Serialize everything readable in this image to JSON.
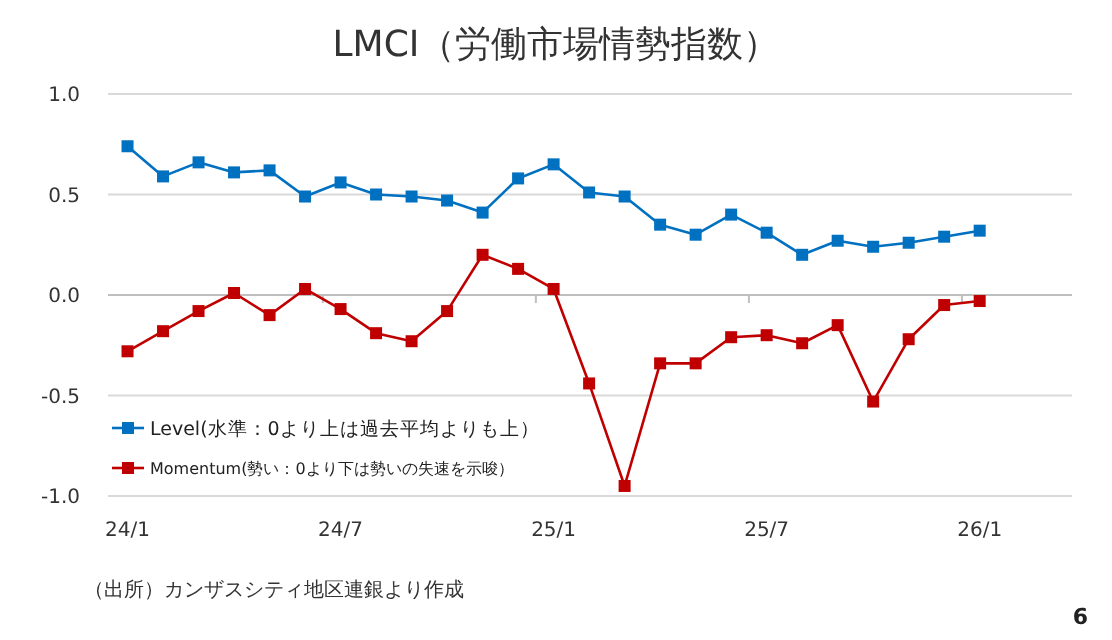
{
  "chart_data": {
    "type": "line",
    "title": "LMCI（労働市場情勢指数）",
    "categories": [
      "24/1",
      null,
      null,
      null,
      null,
      null,
      "24/7",
      null,
      null,
      null,
      null,
      null,
      "25/1",
      null,
      null,
      null,
      null,
      null,
      "25/7",
      null,
      null,
      null,
      null,
      null,
      "26/1"
    ],
    "series": [
      {
        "name": "Level(水準：0より上は過去平均よりも上）",
        "color": "#0070c0",
        "values": [
          0.74,
          0.59,
          0.66,
          0.61,
          0.62,
          0.49,
          0.56,
          0.5,
          0.49,
          0.47,
          0.41,
          0.58,
          0.65,
          0.51,
          0.49,
          0.35,
          0.3,
          0.4,
          0.31,
          0.2,
          0.27,
          0.24,
          0.26,
          0.29,
          0.32
        ]
      },
      {
        "name": "Momentum(勢い：0より下は勢いの失速を示唆）",
        "color": "#c00000",
        "values": [
          -0.28,
          -0.18,
          -0.08,
          0.01,
          -0.1,
          0.03,
          -0.07,
          -0.19,
          -0.23,
          -0.08,
          0.2,
          0.13,
          0.03,
          -0.44,
          -0.95,
          -0.34,
          -0.34,
          -0.21,
          -0.2,
          -0.24,
          -0.15,
          -0.53,
          -0.22,
          -0.05,
          -0.03
        ]
      }
    ],
    "ylim": [
      -1,
      1
    ],
    "yticks": [
      {
        "value": -1,
        "label": "-1.0"
      },
      {
        "value": -0.5,
        "label": "-0.5"
      },
      {
        "value": 0,
        "label": "0.0"
      },
      {
        "value": 0.5,
        "label": "0.5"
      },
      {
        "value": 1,
        "label": "1.0"
      }
    ],
    "grid": "y",
    "legend": "bottom left",
    "marker": "square",
    "line_style": "solid",
    "annotations": [
      "（出所）カンザスシティ地区連銀より作成",
      "6"
    ]
  }
}
